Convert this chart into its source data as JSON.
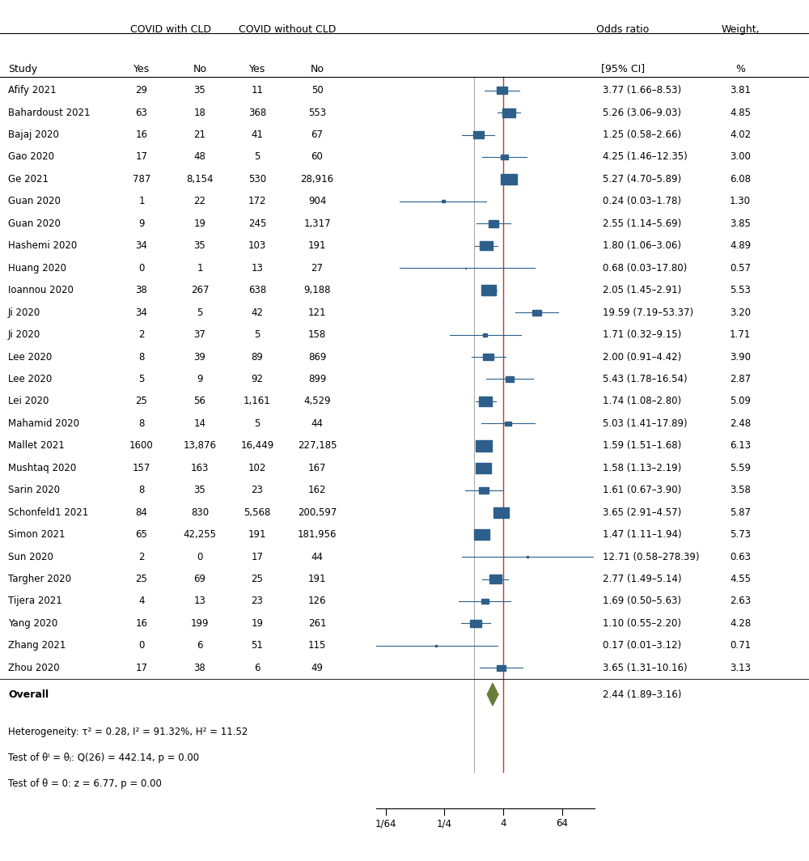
{
  "studies": [
    {
      "name": "Afify 2021",
      "cld_yes": 29,
      "cld_no": 35,
      "no_cld_yes": 11,
      "no_cld_no": 50,
      "or": 3.77,
      "ci_lo": 1.66,
      "ci_hi": 8.53,
      "weight": 3.81,
      "or_text": "3.77 (1.66–8.53)",
      "w_text": "3.81"
    },
    {
      "name": "Bahardoust 2021",
      "cld_yes": 63,
      "cld_no": 18,
      "no_cld_yes": 368,
      "no_cld_no": 553,
      "or": 5.26,
      "ci_lo": 3.06,
      "ci_hi": 9.03,
      "weight": 4.85,
      "or_text": "5.26 (3.06–9.03)",
      "w_text": "4.85"
    },
    {
      "name": "Bajaj 2020",
      "cld_yes": 16,
      "cld_no": 21,
      "no_cld_yes": 41,
      "no_cld_no": 67,
      "or": 1.25,
      "ci_lo": 0.58,
      "ci_hi": 2.66,
      "weight": 4.02,
      "or_text": "1.25 (0.58–2.66)",
      "w_text": "4.02"
    },
    {
      "name": "Gao 2020",
      "cld_yes": 17,
      "cld_no": 48,
      "no_cld_yes": 5,
      "no_cld_no": 60,
      "or": 4.25,
      "ci_lo": 1.46,
      "ci_hi": 12.35,
      "weight": 3.0,
      "or_text": "4.25 (1.46–12.35)",
      "w_text": "3.00"
    },
    {
      "name": "Ge 2021",
      "cld_yes": 787,
      "cld_no": 8154,
      "no_cld_yes": 530,
      "no_cld_no": 28916,
      "or": 5.27,
      "ci_lo": 4.7,
      "ci_hi": 5.89,
      "weight": 6.08,
      "or_text": "5.27 (4.70–5.89)",
      "w_text": "6.08"
    },
    {
      "name": "Guan 2020",
      "cld_yes": 1,
      "cld_no": 22,
      "no_cld_yes": 172,
      "no_cld_no": 904,
      "or": 0.24,
      "ci_lo": 0.03,
      "ci_hi": 1.78,
      "weight": 1.3,
      "or_text": "0.24 (0.03–1.78)",
      "w_text": "1.30"
    },
    {
      "name": "Guan 2020",
      "cld_yes": 9,
      "cld_no": 19,
      "no_cld_yes": 245,
      "no_cld_no": 1317,
      "or": 2.55,
      "ci_lo": 1.14,
      "ci_hi": 5.69,
      "weight": 3.85,
      "or_text": "2.55 (1.14–5.69)",
      "w_text": "3.85"
    },
    {
      "name": "Hashemi 2020",
      "cld_yes": 34,
      "cld_no": 35,
      "no_cld_yes": 103,
      "no_cld_no": 191,
      "or": 1.8,
      "ci_lo": 1.06,
      "ci_hi": 3.06,
      "weight": 4.89,
      "or_text": "1.80 (1.06–3.06)",
      "w_text": "4.89"
    },
    {
      "name": "Huang 2020",
      "cld_yes": 0,
      "cld_no": 1,
      "no_cld_yes": 13,
      "no_cld_no": 27,
      "or": 0.68,
      "ci_lo": 0.03,
      "ci_hi": 17.8,
      "weight": 0.57,
      "or_text": "0.68 (0.03–17.80)",
      "w_text": "0.57"
    },
    {
      "name": "Ioannou 2020",
      "cld_yes": 38,
      "cld_no": 267,
      "no_cld_yes": 638,
      "no_cld_no": 9188,
      "or": 2.05,
      "ci_lo": 1.45,
      "ci_hi": 2.91,
      "weight": 5.53,
      "or_text": "2.05 (1.45–2.91)",
      "w_text": "5.53"
    },
    {
      "name": "Ji 2020",
      "cld_yes": 34,
      "cld_no": 5,
      "no_cld_yes": 42,
      "no_cld_no": 121,
      "or": 19.59,
      "ci_lo": 7.19,
      "ci_hi": 53.37,
      "weight": 3.2,
      "or_text": "19.59 (7.19–53.37)",
      "w_text": "3.20"
    },
    {
      "name": "Ji 2020",
      "cld_yes": 2,
      "cld_no": 37,
      "no_cld_yes": 5,
      "no_cld_no": 158,
      "or": 1.71,
      "ci_lo": 0.32,
      "ci_hi": 9.15,
      "weight": 1.71,
      "or_text": "1.71 (0.32–9.15)",
      "w_text": "1.71"
    },
    {
      "name": "Lee 2020",
      "cld_yes": 8,
      "cld_no": 39,
      "no_cld_yes": 89,
      "no_cld_no": 869,
      "or": 2.0,
      "ci_lo": 0.91,
      "ci_hi": 4.42,
      "weight": 3.9,
      "or_text": "2.00 (0.91–4.42)",
      "w_text": "3.90"
    },
    {
      "name": "Lee 2020",
      "cld_yes": 5,
      "cld_no": 9,
      "no_cld_yes": 92,
      "no_cld_no": 899,
      "or": 5.43,
      "ci_lo": 1.78,
      "ci_hi": 16.54,
      "weight": 2.87,
      "or_text": "5.43 (1.78–16.54)",
      "w_text": "2.87"
    },
    {
      "name": "Lei 2020",
      "cld_yes": 25,
      "cld_no": 56,
      "no_cld_yes": 1161,
      "no_cld_no": 4529,
      "or": 1.74,
      "ci_lo": 1.08,
      "ci_hi": 2.8,
      "weight": 5.09,
      "or_text": "1.74 (1.08–2.80)",
      "w_text": "5.09"
    },
    {
      "name": "Mahamid 2020",
      "cld_yes": 8,
      "cld_no": 14,
      "no_cld_yes": 5,
      "no_cld_no": 44,
      "or": 5.03,
      "ci_lo": 1.41,
      "ci_hi": 17.89,
      "weight": 2.48,
      "or_text": "5.03 (1.41–17.89)",
      "w_text": "2.48"
    },
    {
      "name": "Mallet 2021",
      "cld_yes": 1600,
      "cld_no": 13876,
      "no_cld_yes": 16449,
      "no_cld_no": 227185,
      "or": 1.59,
      "ci_lo": 1.51,
      "ci_hi": 1.68,
      "weight": 6.13,
      "or_text": "1.59 (1.51–1.68)",
      "w_text": "6.13"
    },
    {
      "name": "Mushtaq 2020",
      "cld_yes": 157,
      "cld_no": 163,
      "no_cld_yes": 102,
      "no_cld_no": 167,
      "or": 1.58,
      "ci_lo": 1.13,
      "ci_hi": 2.19,
      "weight": 5.59,
      "or_text": "1.58 (1.13–2.19)",
      "w_text": "5.59"
    },
    {
      "name": "Sarin 2020",
      "cld_yes": 8,
      "cld_no": 35,
      "no_cld_yes": 23,
      "no_cld_no": 162,
      "or": 1.61,
      "ci_lo": 0.67,
      "ci_hi": 3.9,
      "weight": 3.58,
      "or_text": "1.61 (0.67–3.90)",
      "w_text": "3.58"
    },
    {
      "name": "Schonfeld1 2021",
      "cld_yes": 84,
      "cld_no": 830,
      "no_cld_yes": 5568,
      "no_cld_no": 200597,
      "or": 3.65,
      "ci_lo": 2.91,
      "ci_hi": 4.57,
      "weight": 5.87,
      "or_text": "3.65 (2.91–4.57)",
      "w_text": "5.87"
    },
    {
      "name": "Simon 2021",
      "cld_yes": 65,
      "cld_no": 42255,
      "no_cld_yes": 191,
      "no_cld_no": 181956,
      "or": 1.47,
      "ci_lo": 1.11,
      "ci_hi": 1.94,
      "weight": 5.73,
      "or_text": "1.47 (1.11–1.94)",
      "w_text": "5.73"
    },
    {
      "name": "Sun 2020",
      "cld_yes": 2,
      "cld_no": 0,
      "no_cld_yes": 17,
      "no_cld_no": 44,
      "or": 12.71,
      "ci_lo": 0.58,
      "ci_hi": 278.39,
      "weight": 0.63,
      "or_text": "12.71 (0.58–278.39)",
      "w_text": "0.63"
    },
    {
      "name": "Targher 2020",
      "cld_yes": 25,
      "cld_no": 69,
      "no_cld_yes": 25,
      "no_cld_no": 191,
      "or": 2.77,
      "ci_lo": 1.49,
      "ci_hi": 5.14,
      "weight": 4.55,
      "or_text": "2.77 (1.49–5.14)",
      "w_text": "4.55"
    },
    {
      "name": "Tijera 2021",
      "cld_yes": 4,
      "cld_no": 13,
      "no_cld_yes": 23,
      "no_cld_no": 126,
      "or": 1.69,
      "ci_lo": 0.5,
      "ci_hi": 5.63,
      "weight": 2.63,
      "or_text": "1.69 (0.50–5.63)",
      "w_text": "2.63"
    },
    {
      "name": "Yang 2020",
      "cld_yes": 16,
      "cld_no": 199,
      "no_cld_yes": 19,
      "no_cld_no": 261,
      "or": 1.1,
      "ci_lo": 0.55,
      "ci_hi": 2.2,
      "weight": 4.28,
      "or_text": "1.10 (0.55–2.20)",
      "w_text": "4.28"
    },
    {
      "name": "Zhang 2021",
      "cld_yes": 0,
      "cld_no": 6,
      "no_cld_yes": 51,
      "no_cld_no": 115,
      "or": 0.17,
      "ci_lo": 0.01,
      "ci_hi": 3.12,
      "weight": 0.71,
      "or_text": "0.17 (0.01–3.12)",
      "w_text": "0.71"
    },
    {
      "name": "Zhou 2020",
      "cld_yes": 17,
      "cld_no": 38,
      "no_cld_yes": 6,
      "no_cld_no": 49,
      "or": 3.65,
      "ci_lo": 1.31,
      "ci_hi": 10.16,
      "weight": 3.13,
      "or_text": "3.65 (1.31–10.16)",
      "w_text": "3.13"
    }
  ],
  "overall": {
    "or": 2.44,
    "ci_lo": 1.89,
    "ci_hi": 3.16,
    "or_text": "2.44 (1.89–3.16)"
  },
  "heterogeneity_text": "Heterogeneity: τ² = 0.28, I² = 91.32%, H² = 11.52",
  "test_theta_text": "Test of θᴵ = θⱼ: Q(26) = 442.14, p = 0.00",
  "test_zero_text": "Test of θ = 0: z = 6.77, p = 0.00",
  "square_color": "#2d5f8a",
  "diamond_color": "#6b7c3a",
  "red_line_color": "#c0392b",
  "gray_line_color": "#aaaaaa",
  "x_ticks": [
    "1/64",
    "1/4",
    "4",
    "64"
  ],
  "x_tick_vals": [
    0.015625,
    0.25,
    4.0,
    64.0
  ],
  "x_min": 0.01,
  "x_max": 300.0,
  "background_color": "#ffffff"
}
